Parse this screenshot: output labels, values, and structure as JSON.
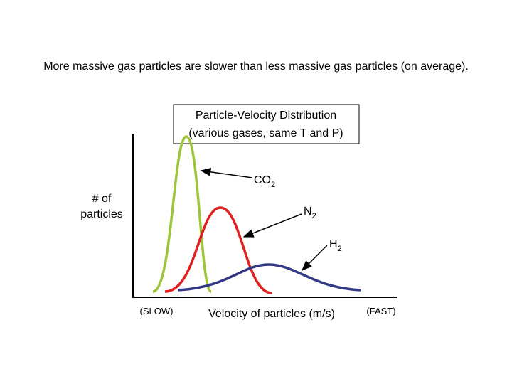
{
  "heading": "More massive gas particles are slower than less massive gas particles (on average).",
  "box": {
    "line1": "Particle-Velocity Distribution",
    "line2": "(various gases, same T and P)"
  },
  "y_label": {
    "line1": "# of",
    "line2": "particles"
  },
  "x_labels": {
    "left": "(SLOW)",
    "center": "Velocity of particles (m/s)",
    "right": "(FAST)"
  },
  "curves": [
    {
      "symbol": "CO",
      "subscript": "2"
    },
    {
      "symbol": "N",
      "subscript": "2"
    },
    {
      "symbol": "H",
      "subscript": "2"
    }
  ]
}
